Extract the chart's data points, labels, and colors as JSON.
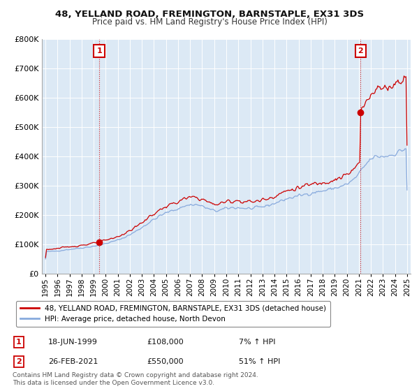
{
  "title": "48, YELLAND ROAD, FREMINGTON, BARNSTAPLE, EX31 3DS",
  "subtitle": "Price paid vs. HM Land Registry's House Price Index (HPI)",
  "property_label": "48, YELLAND ROAD, FREMINGTON, BARNSTAPLE, EX31 3DS (detached house)",
  "hpi_label": "HPI: Average price, detached house, North Devon",
  "transaction1_label": "1",
  "transaction1_date": "18-JUN-1999",
  "transaction1_price": "£108,000",
  "transaction1_hpi": "7% ↑ HPI",
  "transaction2_label": "2",
  "transaction2_date": "26-FEB-2021",
  "transaction2_price": "£550,000",
  "transaction2_hpi": "51% ↑ HPI",
  "footer": "Contains HM Land Registry data © Crown copyright and database right 2024.\nThis data is licensed under the Open Government Licence v3.0.",
  "background_color": "#ffffff",
  "plot_bg_color": "#dce9f5",
  "grid_color": "#ffffff",
  "property_line_color": "#cc0000",
  "hpi_line_color": "#88aadd",
  "vline_color": "#cc0000",
  "ylim": [
    0,
    800000
  ],
  "yticks": [
    0,
    100000,
    200000,
    300000,
    400000,
    500000,
    600000,
    700000,
    800000
  ],
  "ytick_labels": [
    "£0",
    "£100K",
    "£200K",
    "£300K",
    "£400K",
    "£500K",
    "£600K",
    "£700K",
    "£800K"
  ],
  "transaction1_x": 1999.46,
  "transaction1_y": 108000,
  "transaction2_x": 2021.15,
  "transaction2_y": 550000,
  "xlim_left": 1994.7,
  "xlim_right": 2025.3
}
